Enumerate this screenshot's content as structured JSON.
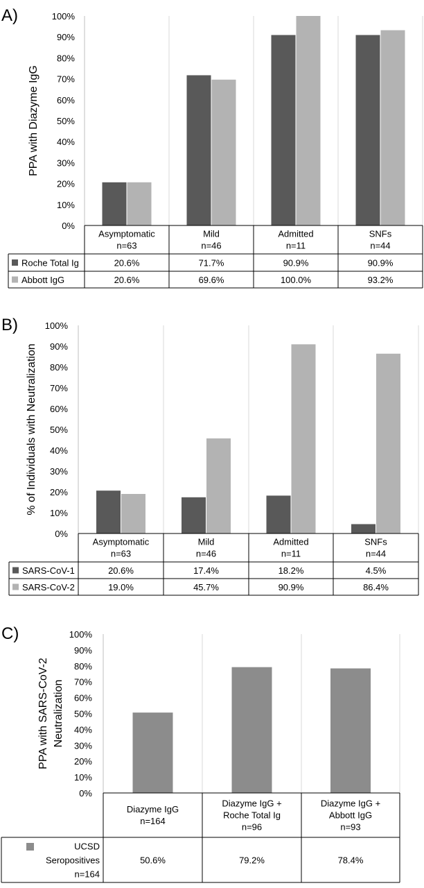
{
  "chart_data": [
    {
      "type": "bar",
      "panel_label": "A)",
      "ylabel": "PPA with Diazyme IgG",
      "ylim": [
        0,
        100
      ],
      "yticks": [
        "0%",
        "10%",
        "20%",
        "30%",
        "40%",
        "50%",
        "60%",
        "70%",
        "80%",
        "90%",
        "100%"
      ],
      "categories": [
        {
          "name": "Asymptomatic",
          "n": "n=63"
        },
        {
          "name": "Mild",
          "n": "n=46"
        },
        {
          "name": "Admitted",
          "n": "n=11"
        },
        {
          "name": "SNFs",
          "n": "n=44"
        }
      ],
      "series": [
        {
          "name": "Roche Total Ig",
          "color": "#595959",
          "values": [
            20.6,
            71.7,
            90.9,
            90.9
          ],
          "labels": [
            "20.6%",
            "71.7%",
            "90.9%",
            "90.9%"
          ]
        },
        {
          "name": "Abbott IgG",
          "color": "#b3b3b3",
          "values": [
            20.6,
            69.6,
            100.0,
            93.2
          ],
          "labels": [
            "20.6%",
            "69.6%",
            "100.0%",
            "93.2%"
          ]
        }
      ],
      "grid": false,
      "legend": "data table"
    },
    {
      "type": "bar",
      "panel_label": "B)",
      "ylabel": "% of Individuals with Neutralization",
      "ylim": [
        0,
        100
      ],
      "yticks": [
        "0%",
        "10%",
        "20%",
        "30%",
        "40%",
        "50%",
        "60%",
        "70%",
        "80%",
        "90%",
        "100%"
      ],
      "categories": [
        {
          "name": "Asymptomatic",
          "n": "n=63"
        },
        {
          "name": "Mild",
          "n": "n=46"
        },
        {
          "name": "Admitted",
          "n": "n=11"
        },
        {
          "name": "SNFs",
          "n": "n=44"
        }
      ],
      "series": [
        {
          "name": "SARS-CoV-1",
          "color": "#595959",
          "values": [
            20.6,
            17.4,
            18.2,
            4.5
          ],
          "labels": [
            "20.6%",
            "17.4%",
            "18.2%",
            "4.5%"
          ]
        },
        {
          "name": "SARS-CoV-2",
          "color": "#b3b3b3",
          "values": [
            19.0,
            45.7,
            90.9,
            86.4
          ],
          "labels": [
            "19.0%",
            "45.7%",
            "90.9%",
            "86.4%"
          ]
        }
      ],
      "grid": false,
      "legend": "data table"
    },
    {
      "type": "bar",
      "panel_label": "C)",
      "ylabel": [
        "PPA with SARS-CoV-2",
        "Neutralization"
      ],
      "ylim": [
        0,
        100
      ],
      "yticks": [
        "0%",
        "10%",
        "20%",
        "30%",
        "40%",
        "50%",
        "60%",
        "70%",
        "80%",
        "90%",
        "100%"
      ],
      "categories": [
        {
          "lines": [
            "Diazyme IgG",
            "n=164"
          ]
        },
        {
          "lines": [
            "Diazyme IgG +",
            "Roche Total Ig",
            "n=96"
          ]
        },
        {
          "lines": [
            "Diazyme IgG +",
            "Abbott IgG",
            "n=93"
          ]
        }
      ],
      "series": [
        {
          "name_lines": [
            "UCSD",
            "Seropositives",
            "n=164"
          ],
          "color": "#8c8c8c",
          "values": [
            50.6,
            79.2,
            78.4
          ],
          "labels": [
            "50.6%",
            "79.2%",
            "78.4%"
          ]
        }
      ],
      "grid": false,
      "legend": "data table"
    }
  ]
}
